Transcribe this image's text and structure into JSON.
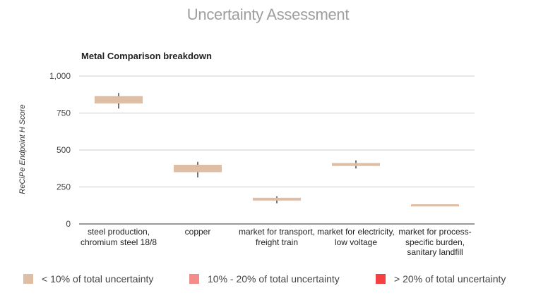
{
  "page_title": "Uncertainty Assessment",
  "chart_data": {
    "type": "boxplot",
    "title": "Metal Comparison breakdown",
    "xlabel": "",
    "ylabel": "ReCiPe Endpoint H Score",
    "ylim": [
      0,
      1000
    ],
    "yticks": [
      0,
      250,
      500,
      750,
      1000
    ],
    "ytick_labels": [
      "0",
      "250",
      "500",
      "750",
      "1,000"
    ],
    "grid": true,
    "legend_position": "bottom",
    "categories": [
      "steel production, chromium steel 18/8",
      "copper",
      "market for transport, freight train",
      "market for electricity, low voltage",
      "market for process-specific burden, sanitary landfill"
    ],
    "boxes": [
      {
        "low": 780,
        "q1": 815,
        "q3": 865,
        "high": 885,
        "uncertainty": "low"
      },
      {
        "low": 315,
        "q1": 350,
        "q3": 400,
        "high": 420,
        "uncertainty": "low"
      },
      {
        "low": 140,
        "q1": 158,
        "q3": 177,
        "high": 187,
        "uncertainty": "low"
      },
      {
        "low": 375,
        "q1": 392,
        "q3": 412,
        "high": 430,
        "uncertainty": "low"
      },
      {
        "low": 125,
        "q1": 125,
        "q3": 133,
        "high": 133,
        "uncertainty": "low"
      }
    ],
    "legend": [
      {
        "key": "low",
        "label": "< 10% of total uncertainty",
        "color": "#dfbea6"
      },
      {
        "key": "mid",
        "label": "10% - 20% of total uncertainty",
        "color": "#f48c8c"
      },
      {
        "key": "high",
        "label": "> 20% of total uncertainty",
        "color": "#f44040"
      }
    ],
    "whisker_color": "#757575",
    "grid_color": "#cccccc",
    "axis_color": "#333333"
  }
}
